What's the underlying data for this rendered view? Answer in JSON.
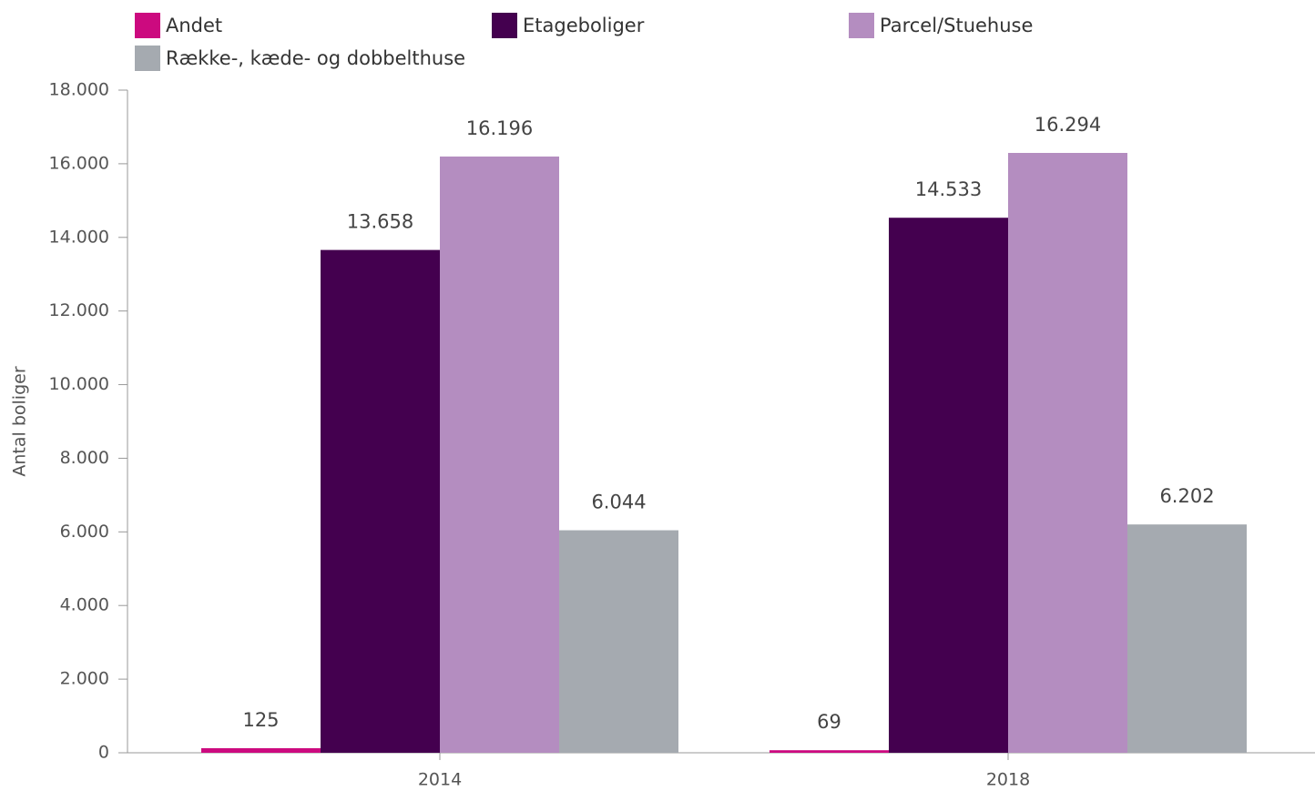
{
  "chart_data": {
    "type": "bar",
    "ylabel": "Antal boliger",
    "categories": [
      "2014",
      "2018"
    ],
    "series": [
      {
        "name": "Andet",
        "color": "#cc0a7f",
        "values": [
          125,
          69
        ],
        "value_labels": [
          "125",
          "69"
        ]
      },
      {
        "name": "Etageboliger",
        "color": "#44004f",
        "values": [
          13658,
          14533
        ],
        "value_labels": [
          "13.658",
          "14.533"
        ]
      },
      {
        "name": "Parcel/Stuehuse",
        "color": "#b48dc0",
        "values": [
          16196,
          16294
        ],
        "value_labels": [
          "16.196",
          "16.294"
        ]
      },
      {
        "name": "Række-, kæde- og dobbelthuse",
        "color": "#a5aab0",
        "values": [
          6044,
          6202
        ],
        "value_labels": [
          "6.044",
          "6.202"
        ]
      }
    ],
    "ylim": [
      0,
      18000
    ],
    "yticks": [
      0,
      {
        "value": 2000,
        "label": "2.000"
      },
      {
        "value": 4000,
        "label": "4.000"
      },
      {
        "value": 6000,
        "label": "6.000"
      },
      {
        "value": 8000,
        "label": "8.000"
      },
      {
        "value": 10000,
        "label": "10.000"
      },
      {
        "value": 12000,
        "label": "12.000"
      },
      {
        "value": 14000,
        "label": "14.000"
      },
      {
        "value": 16000,
        "label": "16.000"
      },
      {
        "value": 18000,
        "label": "18.000"
      }
    ],
    "grid": false
  }
}
